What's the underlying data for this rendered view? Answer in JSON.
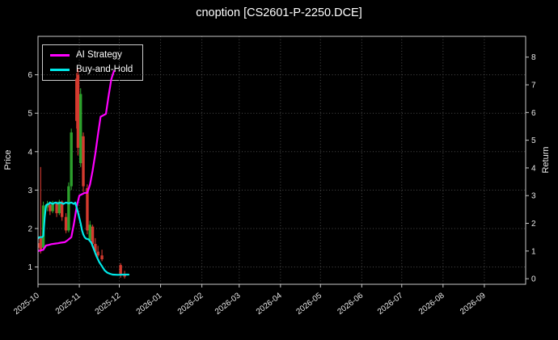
{
  "title": "cnoption [CS2601-P-2250.DCE]",
  "colors": {
    "background": "#000000",
    "text": "#f0f0f0",
    "grid": "#4d4d4d",
    "spine": "#c9c9c9",
    "up": "#2ca02c",
    "down": "#d43a2f"
  },
  "legend": [
    {
      "label": "AI Strategy",
      "color": "#ff00ff"
    },
    {
      "label": "Buy-and-Hold",
      "color": "#00e8e8"
    }
  ],
  "chart_data": {
    "type": "candlestick+line",
    "title": "cnoption [CS2601-P-2250.DCE]",
    "x_axis": {
      "start_date": "2025-10-01",
      "tick_labels": [
        "2025-10",
        "2025-11",
        "2025-12",
        "2026-01",
        "2026-02",
        "2026-03",
        "2026-04",
        "2026-05",
        "2026-06",
        "2026-07",
        "2026-08",
        "2026-09"
      ],
      "tick_days": [
        0,
        31,
        61,
        92,
        123,
        151,
        182,
        212,
        243,
        273,
        304,
        335
      ],
      "domain_days": [
        0,
        366
      ]
    },
    "left_axis": {
      "label": "Price",
      "ticks": [
        1,
        2,
        3,
        4,
        5,
        6
      ],
      "range": [
        0.55,
        7.0
      ]
    },
    "right_axis": {
      "label": "Return",
      "ticks": [
        0,
        1,
        2,
        3,
        4,
        5,
        6,
        7,
        8
      ],
      "range": [
        -0.2,
        8.75
      ]
    },
    "candles": [
      {
        "d": 0,
        "o": 1.62,
        "h": 1.72,
        "l": 1.45,
        "c": 1.5
      },
      {
        "d": 2,
        "o": 1.75,
        "h": 3.6,
        "l": 1.35,
        "c": 1.45
      },
      {
        "d": 4,
        "o": 1.5,
        "h": 2.7,
        "l": 1.42,
        "c": 2.6
      },
      {
        "d": 7,
        "o": 2.55,
        "h": 2.72,
        "l": 2.45,
        "c": 2.65
      },
      {
        "d": 9,
        "o": 2.62,
        "h": 2.7,
        "l": 2.35,
        "c": 2.45
      },
      {
        "d": 11,
        "o": 2.45,
        "h": 2.72,
        "l": 2.4,
        "c": 2.68
      },
      {
        "d": 14,
        "o": 2.65,
        "h": 2.7,
        "l": 2.3,
        "c": 2.4
      },
      {
        "d": 16,
        "o": 2.4,
        "h": 2.75,
        "l": 2.35,
        "c": 2.7
      },
      {
        "d": 18,
        "o": 2.7,
        "h": 2.73,
        "l": 2.2,
        "c": 2.3
      },
      {
        "d": 21,
        "o": 2.3,
        "h": 2.4,
        "l": 1.88,
        "c": 1.95
      },
      {
        "d": 23,
        "o": 1.95,
        "h": 3.2,
        "l": 1.9,
        "c": 3.1
      },
      {
        "d": 25,
        "o": 3.1,
        "h": 4.6,
        "l": 3.0,
        "c": 4.5
      },
      {
        "d": 29,
        "o": 5.9,
        "h": 6.05,
        "l": 4.6,
        "c": 4.8
      },
      {
        "d": 30,
        "o": 6.0,
        "h": 6.15,
        "l": 3.9,
        "c": 4.1
      },
      {
        "d": 32,
        "o": 3.7,
        "h": 5.65,
        "l": 3.6,
        "c": 5.5
      },
      {
        "d": 34,
        "o": 4.4,
        "h": 4.5,
        "l": 2.95,
        "c": 3.1
      },
      {
        "d": 37,
        "o": 3.05,
        "h": 3.15,
        "l": 1.85,
        "c": 1.95
      },
      {
        "d": 39,
        "o": 1.7,
        "h": 2.2,
        "l": 1.65,
        "c": 2.1
      },
      {
        "d": 41,
        "o": 2.05,
        "h": 2.1,
        "l": 1.55,
        "c": 1.6
      },
      {
        "d": 43,
        "o": 1.6,
        "h": 1.75,
        "l": 1.35,
        "c": 1.4
      },
      {
        "d": 45,
        "o": 1.4,
        "h": 1.55,
        "l": 1.25,
        "c": 1.3
      },
      {
        "d": 48,
        "o": 1.3,
        "h": 1.45,
        "l": 1.15,
        "c": 1.2
      },
      {
        "d": 62,
        "o": 1.05,
        "h": 1.1,
        "l": 0.72,
        "c": 0.78
      },
      {
        "d": 65,
        "o": 0.8,
        "h": 0.9,
        "l": 0.7,
        "c": 0.75
      }
    ],
    "series": [
      {
        "name": "AI Strategy",
        "axis": "right",
        "color": "#ff00ff",
        "points": [
          [
            0,
            1.0
          ],
          [
            2,
            1.02
          ],
          [
            4,
            1.05
          ],
          [
            6,
            1.2
          ],
          [
            8,
            1.22
          ],
          [
            10,
            1.25
          ],
          [
            13,
            1.27
          ],
          [
            15,
            1.28
          ],
          [
            17,
            1.3
          ],
          [
            20,
            1.32
          ],
          [
            22,
            1.38
          ],
          [
            25,
            1.5
          ],
          [
            27,
            2.0
          ],
          [
            29,
            2.6
          ],
          [
            31,
            3.0
          ],
          [
            33,
            3.05
          ],
          [
            35,
            3.1
          ],
          [
            37,
            3.1
          ],
          [
            39,
            3.4
          ],
          [
            41,
            3.9
          ],
          [
            43,
            4.5
          ],
          [
            45,
            5.2
          ],
          [
            47,
            5.85
          ],
          [
            49,
            5.9
          ],
          [
            51,
            5.95
          ],
          [
            53,
            6.6
          ],
          [
            55,
            7.2
          ],
          [
            57,
            7.5
          ]
        ]
      },
      {
        "name": "Buy-and-Hold",
        "axis": "right",
        "color": "#00e8e8",
        "points": [
          [
            0,
            1.45
          ],
          [
            1,
            1.5
          ],
          [
            3,
            1.5
          ],
          [
            4,
            1.55
          ],
          [
            5,
            2.2
          ],
          [
            6,
            2.65
          ],
          [
            8,
            2.7
          ],
          [
            9,
            2.75
          ],
          [
            11,
            2.7
          ],
          [
            13,
            2.75
          ],
          [
            15,
            2.72
          ],
          [
            17,
            2.75
          ],
          [
            19,
            2.7
          ],
          [
            21,
            2.75
          ],
          [
            23,
            2.72
          ],
          [
            25,
            2.75
          ],
          [
            27,
            2.7
          ],
          [
            28,
            2.75
          ],
          [
            30,
            2.4
          ],
          [
            32,
            2.0
          ],
          [
            33,
            1.75
          ],
          [
            34,
            1.6
          ],
          [
            35,
            1.5
          ],
          [
            36,
            1.45
          ],
          [
            38,
            1.42
          ],
          [
            40,
            1.3
          ],
          [
            42,
            1.05
          ],
          [
            44,
            0.8
          ],
          [
            46,
            0.6
          ],
          [
            48,
            0.45
          ],
          [
            50,
            0.3
          ],
          [
            52,
            0.22
          ],
          [
            54,
            0.18
          ],
          [
            56,
            0.15
          ],
          [
            60,
            0.14
          ],
          [
            64,
            0.15
          ],
          [
            68,
            0.15
          ]
        ]
      }
    ]
  }
}
